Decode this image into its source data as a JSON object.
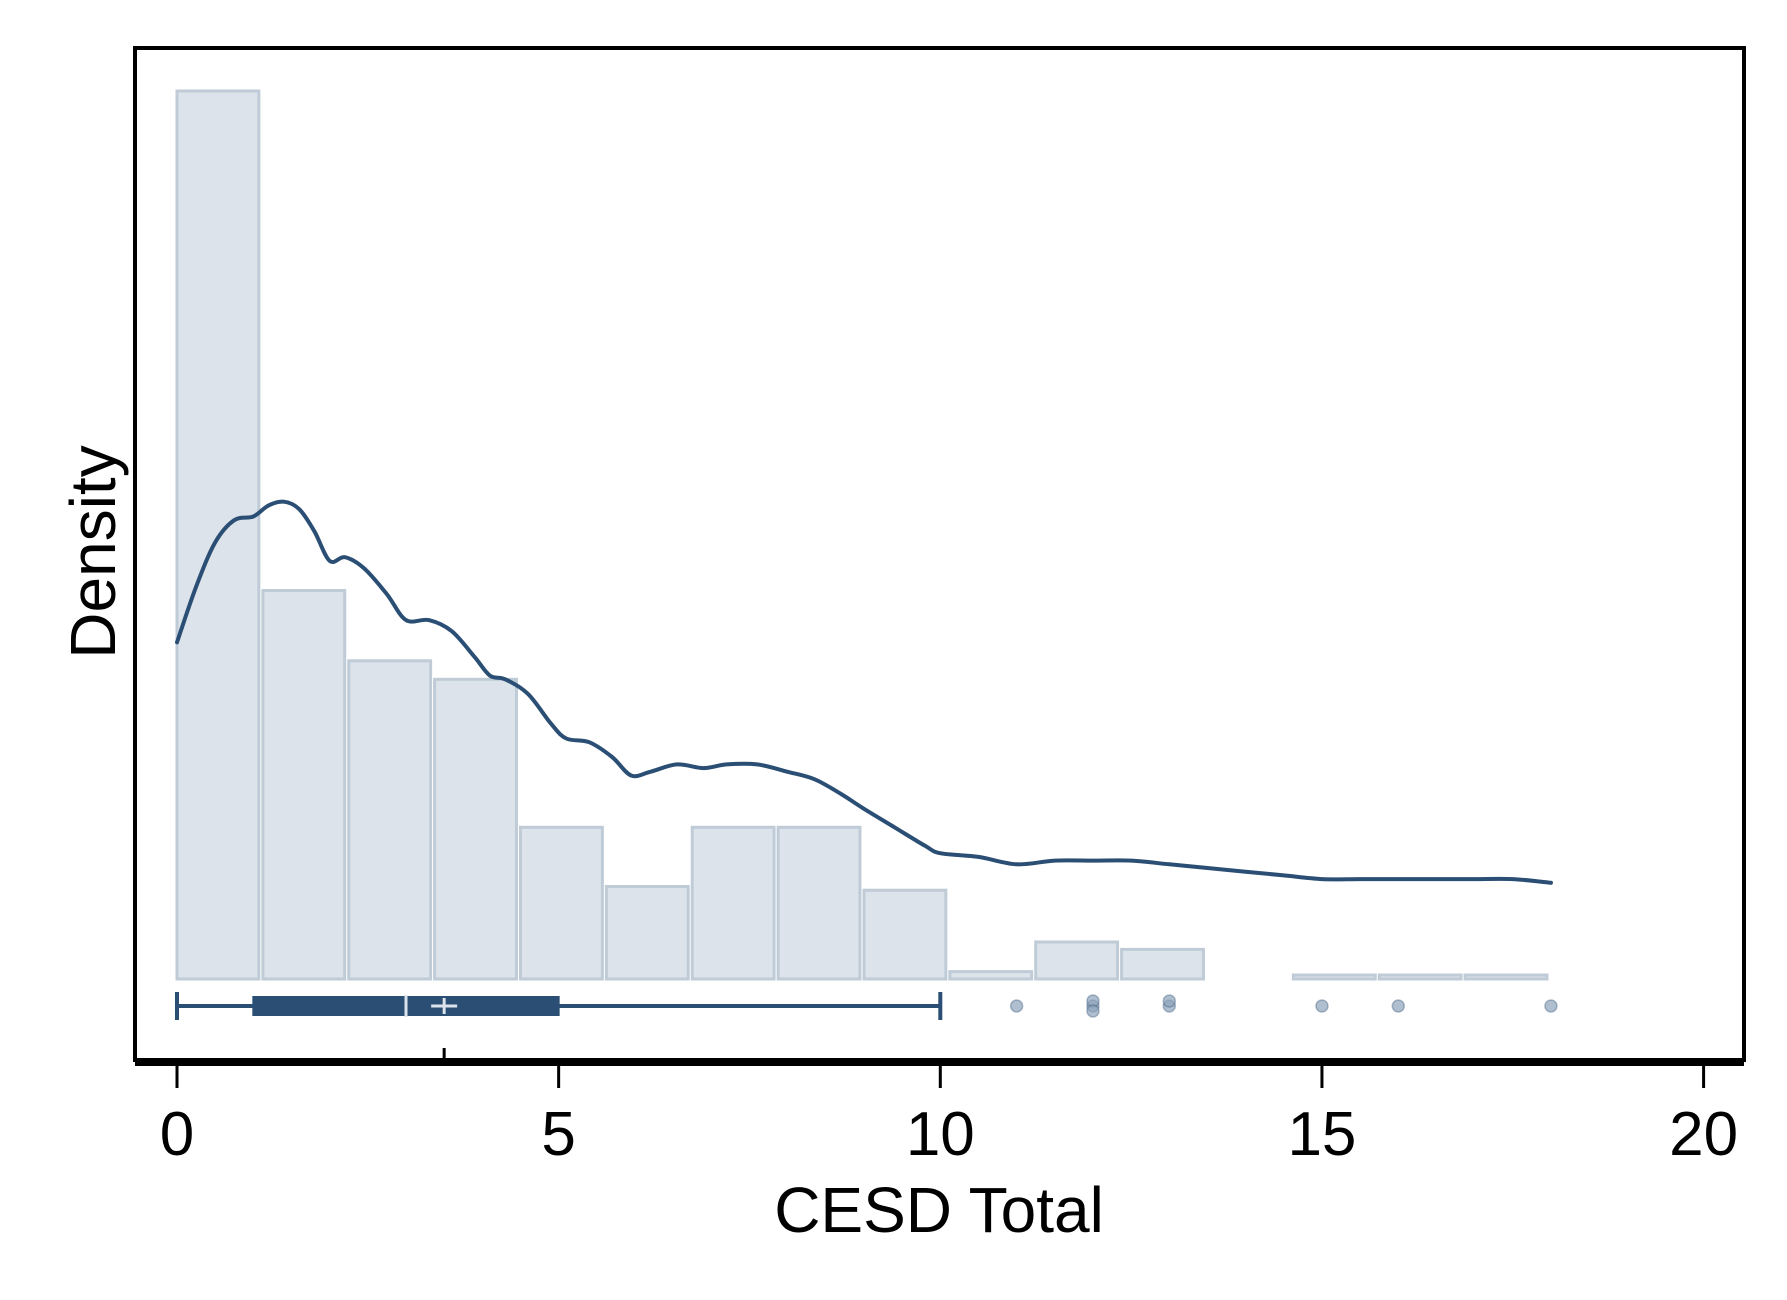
{
  "chart_data": {
    "type": "histogram",
    "xlabel": "CESD Total",
    "ylabel": "Density",
    "xlim": [
      -0.5,
      20.5
    ],
    "x_ticks": [
      0,
      5,
      10,
      15,
      20
    ],
    "y_ticks_shown": false,
    "grid": false,
    "legend": "none",
    "histogram": {
      "bin_width": 1.125,
      "bin_start": 0,
      "densities": [
        0.24,
        0.105,
        0.086,
        0.081,
        0.041,
        0.025,
        0.041,
        0.041,
        0.024,
        0.002,
        0.01,
        0.008,
        0,
        0.001,
        0.001,
        0.001
      ]
    },
    "density_curve": [
      [
        0,
        0.091
      ],
      [
        0.25,
        0.106
      ],
      [
        0.5,
        0.118
      ],
      [
        0.75,
        0.124
      ],
      [
        1.0,
        0.125
      ],
      [
        1.2,
        0.128
      ],
      [
        1.4,
        0.129
      ],
      [
        1.6,
        0.127
      ],
      [
        1.8,
        0.121
      ],
      [
        2.0,
        0.113
      ],
      [
        2.2,
        0.114
      ],
      [
        2.45,
        0.111
      ],
      [
        2.75,
        0.104
      ],
      [
        3.0,
        0.097
      ],
      [
        3.3,
        0.097
      ],
      [
        3.6,
        0.094
      ],
      [
        3.9,
        0.087
      ],
      [
        4.1,
        0.082
      ],
      [
        4.3,
        0.081
      ],
      [
        4.6,
        0.077
      ],
      [
        4.9,
        0.069
      ],
      [
        5.1,
        0.065
      ],
      [
        5.4,
        0.064
      ],
      [
        5.7,
        0.06
      ],
      [
        5.95,
        0.055
      ],
      [
        6.2,
        0.056
      ],
      [
        6.55,
        0.058
      ],
      [
        6.9,
        0.057
      ],
      [
        7.2,
        0.058
      ],
      [
        7.6,
        0.058
      ],
      [
        8.0,
        0.056
      ],
      [
        8.35,
        0.054
      ],
      [
        8.7,
        0.05
      ],
      [
        9.0,
        0.046
      ],
      [
        9.4,
        0.041
      ],
      [
        9.8,
        0.036
      ],
      [
        10.0,
        0.034
      ],
      [
        10.5,
        0.033
      ],
      [
        11.0,
        0.031
      ],
      [
        11.5,
        0.032
      ],
      [
        12.0,
        0.032
      ],
      [
        12.5,
        0.032
      ],
      [
        13.0,
        0.031
      ],
      [
        13.5,
        0.03
      ],
      [
        14.0,
        0.029
      ],
      [
        14.5,
        0.028
      ],
      [
        15.0,
        0.027
      ],
      [
        15.5,
        0.027
      ],
      [
        16.0,
        0.027
      ],
      [
        16.5,
        0.027
      ],
      [
        17.0,
        0.027
      ],
      [
        17.5,
        0.027
      ],
      [
        18.0,
        0.026
      ]
    ],
    "density_ylim": [
      0,
      0.25
    ],
    "boxplot": {
      "whisker_low": 0,
      "q1": 1,
      "median": 3,
      "mean": 3.5,
      "q3": 5,
      "whisker_high": 10
    },
    "outliers": [
      11,
      12,
      12,
      12,
      13,
      13,
      15,
      16,
      18
    ],
    "colors": {
      "bar_fill": "#dce3ea",
      "bar_stroke": "#bfcbd6",
      "curve": "#2b4e74",
      "box": "#2b4e74",
      "outlier": "#8ea4bb"
    }
  }
}
